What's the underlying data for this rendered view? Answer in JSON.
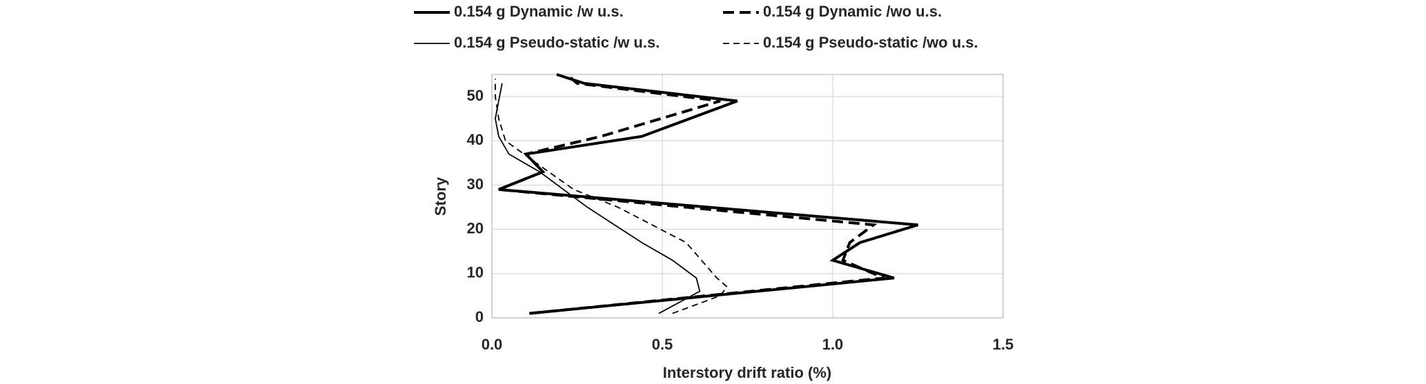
{
  "chart_data": {
    "type": "line",
    "x_label": "Interstory drift ratio (%)",
    "y_label": "Story",
    "xlim": [
      0,
      1.5
    ],
    "xticks": [
      {
        "value": 0,
        "label": "0.0"
      },
      0.5,
      {
        "value": 1,
        "label": "1.0"
      },
      1.5
    ],
    "ylim": [
      0,
      55
    ],
    "yticks": [
      0,
      10,
      20,
      30,
      40,
      50
    ],
    "grid": true,
    "series": [
      {
        "name": "0.154 g Dynamic /w u.s.",
        "color": "#000000",
        "line_style": "solid",
        "line_weight": "thick",
        "y": [
          1,
          9,
          13,
          17,
          21,
          29,
          33,
          37,
          41,
          49,
          53,
          55
        ],
        "values": [
          0.11,
          1.18,
          1.0,
          1.08,
          1.25,
          0.02,
          0.15,
          0.1,
          0.44,
          0.72,
          0.27,
          0.19
        ]
      },
      {
        "name": "0.154 g Dynamic /wo u.s.",
        "color": "#000000",
        "line_style": "dashed",
        "line_weight": "thick",
        "y": [
          1,
          9,
          13,
          17,
          21,
          29,
          33,
          37,
          41,
          49,
          53,
          55
        ],
        "values": [
          0.11,
          1.15,
          1.03,
          1.05,
          1.12,
          0.02,
          0.15,
          0.1,
          0.32,
          0.67,
          0.25,
          0.22
        ]
      },
      {
        "name": "0.154 g Pseudo-static /w u.s.",
        "color": "#000000",
        "line_style": "solid",
        "line_weight": "thin",
        "y": [
          1,
          6,
          9,
          13,
          17,
          25,
          33,
          37,
          41,
          45,
          49,
          53
        ],
        "values": [
          0.49,
          0.61,
          0.6,
          0.53,
          0.44,
          0.28,
          0.14,
          0.05,
          0.02,
          0.01,
          0.02,
          0.03
        ]
      },
      {
        "name": "0.154 g Pseudo-static /wo u.s.",
        "color": "#000000",
        "line_style": "dashed",
        "line_weight": "thin",
        "y": [
          1,
          5,
          7,
          9,
          17,
          25,
          29,
          35,
          40,
          45,
          50,
          54
        ],
        "values": [
          0.53,
          0.67,
          0.69,
          0.66,
          0.57,
          0.37,
          0.24,
          0.13,
          0.04,
          0.02,
          0.01,
          0.01
        ]
      }
    ]
  }
}
